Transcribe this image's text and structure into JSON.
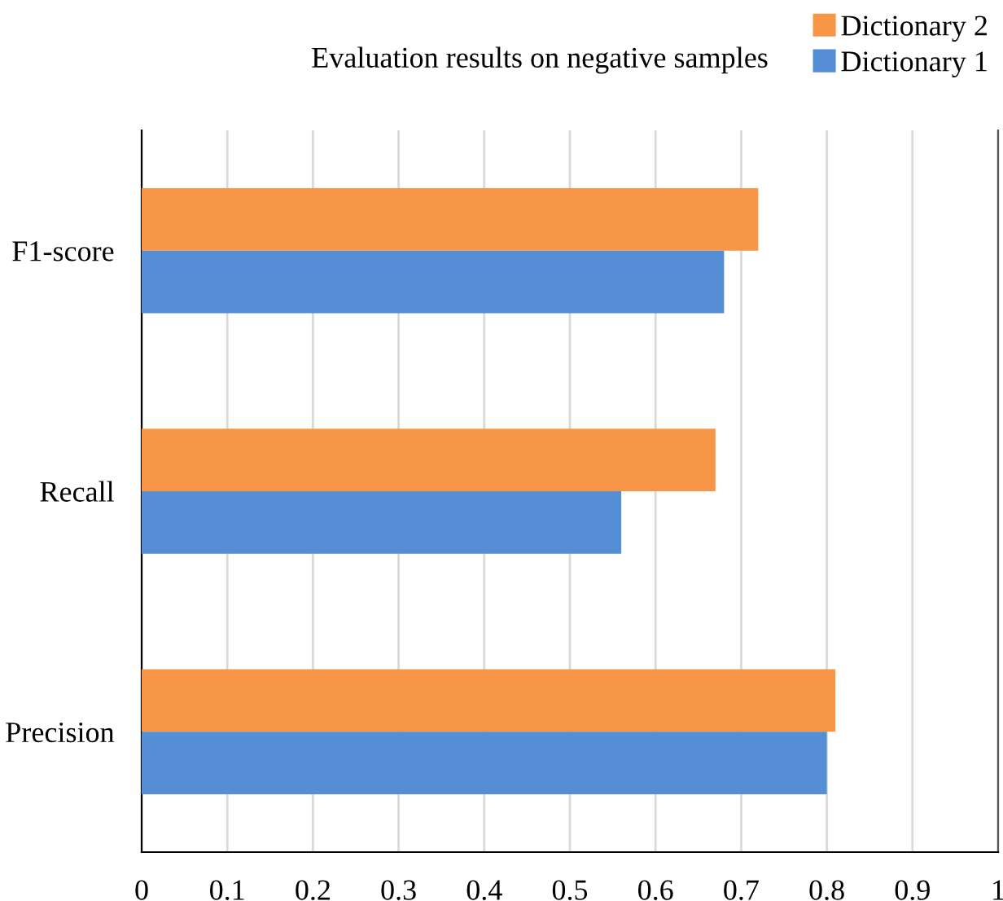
{
  "chart_data": {
    "type": "bar",
    "orientation": "horizontal",
    "title": "Evaluation results on negative samples",
    "categories": [
      "F1-score",
      "Recall",
      "Precision"
    ],
    "series": [
      {
        "name": "Dictionary 2",
        "color": "#f79646",
        "values": [
          0.72,
          0.67,
          0.81
        ]
      },
      {
        "name": "Dictionary 1",
        "color": "#558ed5",
        "values": [
          0.68,
          0.56,
          0.8
        ]
      }
    ],
    "xlim": [
      0,
      1
    ],
    "xticks": [
      0,
      0.1,
      0.2,
      0.3,
      0.4,
      0.5,
      0.6,
      0.7,
      0.8,
      0.9,
      1
    ],
    "grid": "x",
    "legend": "top right"
  }
}
